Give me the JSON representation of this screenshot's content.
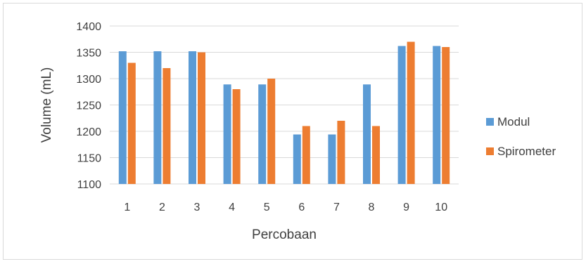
{
  "chart_data": {
    "type": "bar",
    "categories": [
      "1",
      "2",
      "3",
      "4",
      "5",
      "6",
      "7",
      "8",
      "9",
      "10"
    ],
    "series": [
      {
        "name": "Modul",
        "color": "#5b9bd5",
        "values": [
          1352,
          1352,
          1352,
          1289,
          1289,
          1194,
          1194,
          1289,
          1362,
          1362
        ]
      },
      {
        "name": "Spirometer",
        "color": "#ed7d31",
        "values": [
          1330,
          1320,
          1350,
          1280,
          1300,
          1210,
          1220,
          1210,
          1370,
          1360
        ]
      }
    ],
    "xlabel": "Percobaan",
    "ylabel": "Volume (mL)",
    "ylim": [
      1100,
      1400
    ],
    "yticks": [
      1100,
      1150,
      1200,
      1250,
      1300,
      1350,
      1400
    ],
    "grid": true,
    "legend_position": "right"
  }
}
